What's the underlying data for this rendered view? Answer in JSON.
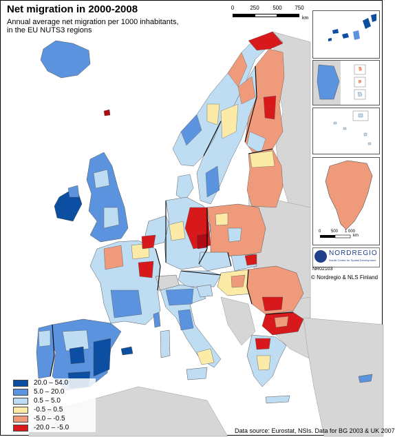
{
  "title": "Net migration in 2000-2008",
  "subtitle_line1": "Annual average net migration per 1000 inhabitants,",
  "subtitle_line2": "in the EU NUTS3 regions",
  "scale_bar": {
    "ticks": [
      "0",
      "250",
      "500",
      "750"
    ],
    "unit": "km"
  },
  "inset_scale": {
    "ticks": [
      "0",
      "500",
      "1 000"
    ],
    "unit": "km"
  },
  "legend": {
    "items": [
      {
        "label": "20.0 – 54.0",
        "color": "#0b4ea2"
      },
      {
        "label": "5.0 – 20.0",
        "color": "#5b93df"
      },
      {
        "label": "0.5 –   5.0",
        "color": "#bedcf2"
      },
      {
        "label": "-0.5 –   0.5",
        "color": "#fbeba6"
      },
      {
        "label": "-5.0 – -0.5",
        "color": "#ef9a7a"
      },
      {
        "label": "-20.0 – -5.0",
        "color": "#d7191c"
      }
    ]
  },
  "colors": {
    "water": "#ffffff",
    "non_eu": "#d6d6d6",
    "border": "#000000",
    "dark_red": "#b00a17"
  },
  "logo": {
    "name": "NORDREGIO",
    "tagline": "Nordic Centre for Spatial Development"
  },
  "map_id": "NR02103",
  "copyright": "© Nordregio & NLS Finland",
  "source": "Data source: Eurostat, NSIs. Data for BG 2003 & UK 2007"
}
